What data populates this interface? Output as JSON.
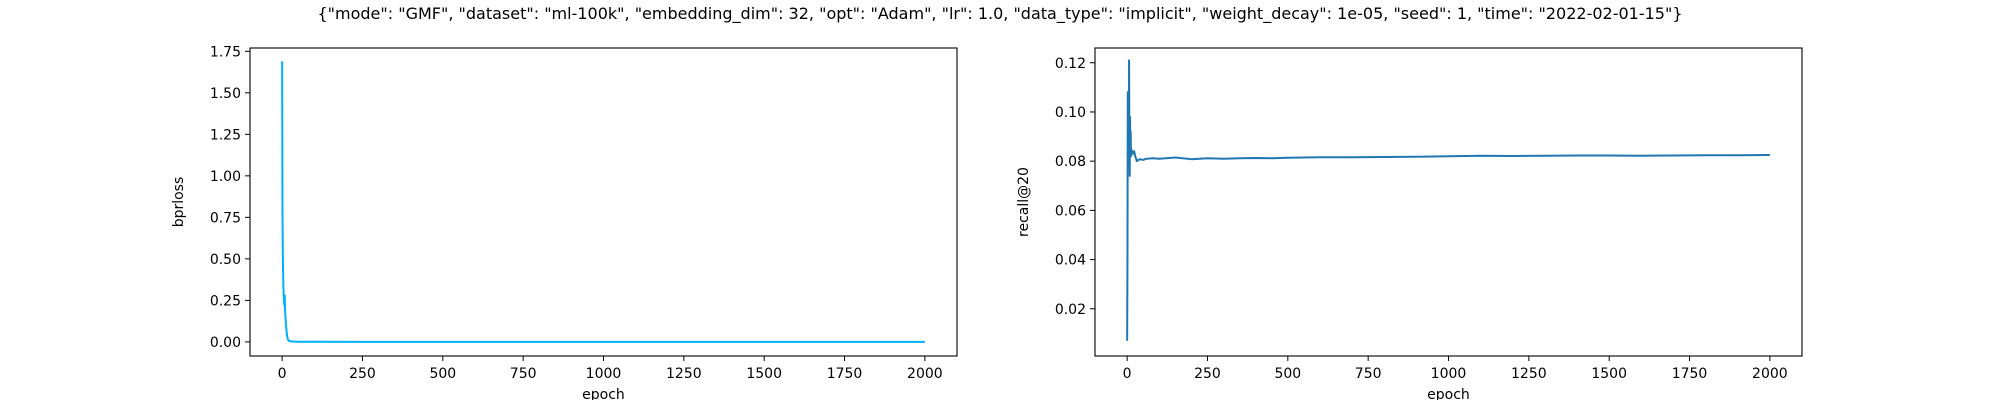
{
  "figure": {
    "title": "{\"mode\": \"GMF\", \"dataset\": \"ml-100k\", \"embedding_dim\": 32, \"opt\": \"Adam\", \"lr\": 1.0, \"data_type\": \"implicit\", \"weight_decay\": 1e-05, \"seed\": 1, \"time\": \"2022-02-01-15\"}"
  },
  "chart_data": [
    {
      "type": "line",
      "xlabel": "epoch",
      "ylabel": "bprloss",
      "xlim": [
        -100,
        2100
      ],
      "ylim": [
        -0.085,
        1.77
      ],
      "xticks": [
        0,
        250,
        500,
        750,
        1000,
        1250,
        1500,
        1750,
        2000
      ],
      "xtick_labels": [
        "0",
        "250",
        "500",
        "750",
        "1000",
        "1250",
        "1500",
        "1750",
        "2000"
      ],
      "yticks": [
        0.0,
        0.25,
        0.5,
        0.75,
        1.0,
        1.25,
        1.5,
        1.75
      ],
      "ytick_labels": [
        "0.00",
        "0.25",
        "0.50",
        "0.75",
        "1.00",
        "1.25",
        "1.50",
        "1.75"
      ],
      "grid": false,
      "color": "#00b0ff",
      "series": [
        {
          "x": [
            0,
            1,
            2,
            3,
            4,
            5,
            6,
            7,
            8,
            9,
            10,
            12,
            14,
            16,
            18,
            20,
            25,
            30,
            50,
            100,
            250,
            500,
            1000,
            1500,
            2000
          ],
          "y": [
            1.69,
            0.8,
            0.55,
            0.42,
            0.33,
            0.27,
            0.24,
            0.22,
            0.28,
            0.2,
            0.16,
            0.1,
            0.06,
            0.03,
            0.015,
            0.008,
            0.004,
            0.002,
            0.001,
            0.0005,
            0.0003,
            0.0002,
            0.0001,
            0.0001,
            0.0001
          ]
        }
      ]
    },
    {
      "type": "line",
      "xlabel": "epoch",
      "ylabel": "recall@20",
      "xlim": [
        -100,
        2100
      ],
      "ylim": [
        0.0008,
        0.126
      ],
      "xticks": [
        0,
        250,
        500,
        750,
        1000,
        1250,
        1500,
        1750,
        2000
      ],
      "xtick_labels": [
        "0",
        "250",
        "500",
        "750",
        "1000",
        "1250",
        "1500",
        "1750",
        "2000"
      ],
      "yticks": [
        0.02,
        0.04,
        0.06,
        0.08,
        0.1,
        0.12
      ],
      "ytick_labels": [
        "0.02",
        "0.04",
        "0.06",
        "0.08",
        "0.10",
        "0.12"
      ],
      "grid": false,
      "color": "#1f77b4",
      "series": [
        {
          "x": [
            0,
            1,
            2,
            3,
            4,
            5,
            6,
            7,
            8,
            9,
            10,
            11,
            12,
            13,
            14,
            15,
            16,
            18,
            20,
            22,
            25,
            28,
            30,
            35,
            40,
            50,
            60,
            80,
            100,
            150,
            200,
            250,
            300,
            350,
            400,
            450,
            500,
            550,
            600,
            700,
            800,
            900,
            1000,
            1100,
            1200,
            1300,
            1400,
            1500,
            1600,
            1700,
            1800,
            1900,
            2000
          ],
          "y": [
            0.007,
            0.04,
            0.108,
            0.085,
            0.095,
            0.079,
            0.121,
            0.086,
            0.074,
            0.098,
            0.087,
            0.092,
            0.082,
            0.085,
            0.083,
            0.084,
            0.083,
            0.084,
            0.083,
            0.084,
            0.082,
            0.081,
            0.08,
            0.0805,
            0.0808,
            0.0805,
            0.081,
            0.0812,
            0.081,
            0.0815,
            0.0808,
            0.0812,
            0.081,
            0.0812,
            0.0813,
            0.0812,
            0.0814,
            0.0815,
            0.0816,
            0.0816,
            0.0817,
            0.0818,
            0.082,
            0.0822,
            0.0821,
            0.0822,
            0.0823,
            0.0823,
            0.0822,
            0.0823,
            0.0824,
            0.0824,
            0.0825
          ]
        }
      ]
    }
  ]
}
